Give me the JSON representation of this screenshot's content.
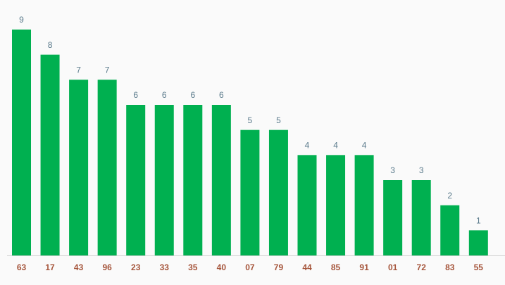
{
  "chart_data": {
    "type": "bar",
    "categories": [
      "63",
      "17",
      "43",
      "96",
      "23",
      "33",
      "35",
      "40",
      "07",
      "79",
      "44",
      "85",
      "91",
      "01",
      "72",
      "83",
      "55"
    ],
    "values": [
      9,
      8,
      7,
      7,
      6,
      6,
      6,
      6,
      5,
      5,
      4,
      4,
      4,
      3,
      3,
      2,
      1
    ],
    "color": "#00b050"
  }
}
